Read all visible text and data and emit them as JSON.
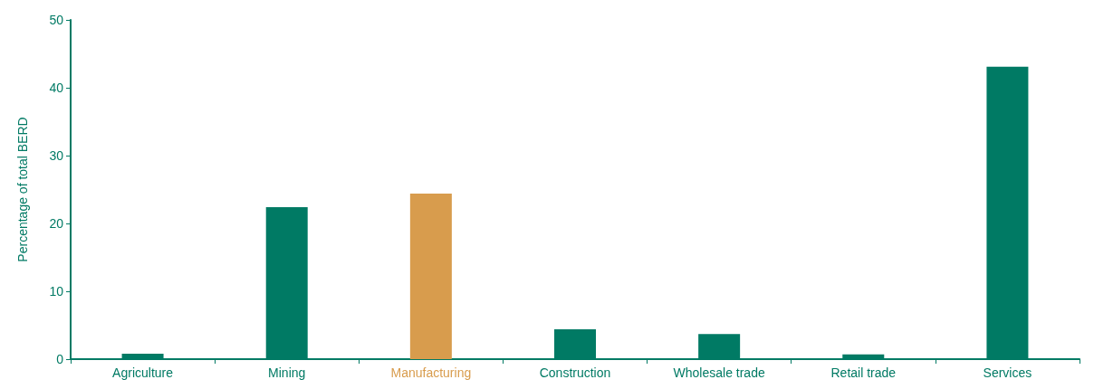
{
  "chart_data": {
    "type": "bar",
    "ylabel": "Percentage of total BERD",
    "categories": [
      "Agriculture",
      "Mining",
      "Manufacturing",
      "Construction",
      "Wholesale trade",
      "Retail trade",
      "Services"
    ],
    "values": [
      0.8,
      22.4,
      24.4,
      4.4,
      3.7,
      0.7,
      43.1
    ],
    "colors": [
      "#007a64",
      "#007a64",
      "#d89c4d",
      "#007a64",
      "#007a64",
      "#007a64",
      "#007a64"
    ],
    "ylim": [
      0,
      50
    ],
    "yticks": [
      0,
      10,
      20,
      30,
      40,
      50
    ],
    "grid": false
  }
}
